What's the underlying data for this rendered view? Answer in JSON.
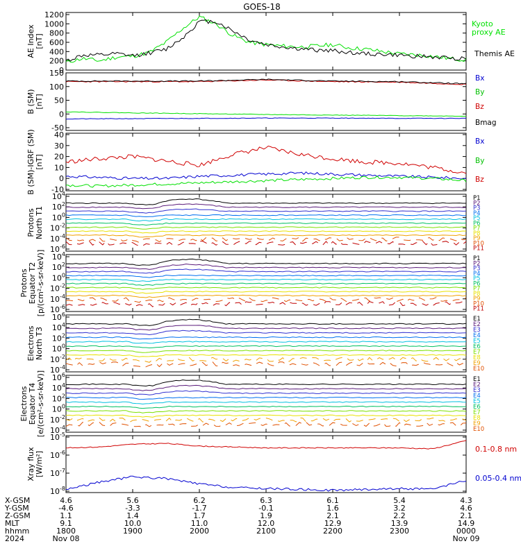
{
  "title": "GOES-18",
  "colors": {
    "black": "#000000",
    "green": "#00e000",
    "red": "#d00000",
    "blue": "#0000d0",
    "ladder": [
      "#000000",
      "#5a1a7a",
      "#3030d0",
      "#0070f0",
      "#00c0e0",
      "#00c060",
      "#7ce000",
      "#e8e000",
      "#f0a000",
      "#e05000",
      "#c00000"
    ]
  },
  "panels": [
    {
      "id": "ae",
      "ylabel": [
        "AE Index",
        "[nT]"
      ],
      "ticks": [
        "1200",
        "1000",
        "800",
        "600",
        "400",
        "200",
        "0"
      ],
      "legend": [
        {
          "text": "Kyoto",
          "color": "#00e000"
        },
        {
          "text": "proxy AE",
          "color": "#00e000"
        },
        {
          "text": "Themis AE",
          "color": "#000000"
        }
      ]
    },
    {
      "id": "bsm",
      "ylabel": [
        "B (SM)",
        "[nT]"
      ],
      "ticks": [
        "150",
        "100",
        "50",
        "0",
        "-50"
      ],
      "legend": [
        {
          "text": "Bx",
          "color": "#0000d0"
        },
        {
          "text": "By",
          "color": "#00c000"
        },
        {
          "text": "Bz",
          "color": "#d00000"
        },
        {
          "text": "Bmag",
          "color": "#000000"
        }
      ]
    },
    {
      "id": "bigrf",
      "ylabel": [
        "B (SM)-IGRF (SM)",
        "[nT]"
      ],
      "ticks": [
        "40",
        "30",
        "20",
        "10",
        "0",
        "-10"
      ],
      "legend": [
        {
          "text": "Bx",
          "color": "#0000d0"
        },
        {
          "text": "By",
          "color": "#00c000"
        },
        {
          "text": "Bz",
          "color": "#d00000"
        }
      ]
    },
    {
      "id": "pt1",
      "ylabel": [
        "Protons",
        "North T1"
      ],
      "ticks": [
        {
          "b": "10",
          "e": "4"
        },
        {
          "b": "10",
          "e": "2"
        },
        {
          "b": "10",
          "e": "0"
        },
        {
          "b": "10",
          "e": "-2"
        },
        {
          "b": "10",
          "e": "-4"
        },
        {
          "b": "10",
          "e": "-6"
        }
      ],
      "legend": [
        "P1",
        "P2",
        "P3",
        "P4",
        "P5",
        "P6",
        "P7",
        "P8",
        "P9",
        "P10",
        "P11"
      ]
    },
    {
      "id": "pt2",
      "ylabel": [
        "Protons",
        "Equator T2",
        "[p/(cm²-s-sr-keV)]"
      ],
      "ticks": [
        {
          "b": "10",
          "e": "4"
        },
        {
          "b": "10",
          "e": "2"
        },
        {
          "b": "10",
          "e": "0"
        },
        {
          "b": "10",
          "e": "-2"
        },
        {
          "b": "10",
          "e": "-4"
        },
        {
          "b": "10",
          "e": "-6"
        }
      ],
      "legend": [
        "P1",
        "P2",
        "P3",
        "P4",
        "P5",
        "P6",
        "P7",
        "P8",
        "P9",
        "P10",
        "P11"
      ]
    },
    {
      "id": "et3",
      "ylabel": [
        "Electrons",
        "North T3"
      ],
      "ticks": [
        {
          "b": "10",
          "e": "6"
        },
        {
          "b": "10",
          "e": "4"
        },
        {
          "b": "10",
          "e": "2"
        },
        {
          "b": "10",
          "e": "0"
        },
        {
          "b": "10",
          "e": "-2"
        },
        {
          "b": "10",
          "e": "-4"
        }
      ],
      "legend": [
        "E1",
        "E2",
        "E3",
        "E4",
        "E5",
        "E6",
        "E7",
        "E8",
        "E9",
        "E10"
      ]
    },
    {
      "id": "et4",
      "ylabel": [
        "Electrons",
        "Equator T4",
        "[e/(cm²-s-sr-keV)]"
      ],
      "ticks": [
        {
          "b": "10",
          "e": "6"
        },
        {
          "b": "10",
          "e": "4"
        },
        {
          "b": "10",
          "e": "2"
        },
        {
          "b": "10",
          "e": "0"
        },
        {
          "b": "10",
          "e": "-2"
        },
        {
          "b": "10",
          "e": "-4"
        }
      ],
      "legend": [
        "E1",
        "E2",
        "E3",
        "E4",
        "E5",
        "E6",
        "E7",
        "E8",
        "E9",
        "E10"
      ]
    },
    {
      "id": "xray",
      "ylabel": [
        "Xray flux",
        "[W/m²]"
      ],
      "ticks": [
        {
          "b": "10",
          "e": "-5"
        },
        {
          "b": "10",
          "e": "-6"
        },
        {
          "b": "10",
          "e": "-7"
        },
        {
          "b": "10",
          "e": "-8"
        }
      ],
      "legend": [
        {
          "text": "0.1-0.8 nm",
          "color": "#d00000"
        },
        {
          "text": "0.05-0.4 nm",
          "color": "#0000d0"
        }
      ]
    }
  ],
  "ephemeris": {
    "row_labels": [
      "X-GSM",
      "Y-GSM",
      "Z-GSM",
      "MLT",
      "hhmm",
      "2024"
    ],
    "columns": [
      [
        "4.6",
        "-4.6",
        "1.1",
        "9.1",
        "1800",
        "Nov 08"
      ],
      [
        "5.6",
        "-3.3",
        "1.4",
        "10.0",
        "1900",
        ""
      ],
      [
        "6.2",
        "-1.7",
        "1.7",
        "11.0",
        "2000",
        ""
      ],
      [
        "6.3",
        "-0.1",
        "1.9",
        "12.0",
        "2100",
        ""
      ],
      [
        "6.1",
        "1.6",
        "2.1",
        "12.9",
        "2200",
        ""
      ],
      [
        "5.4",
        "3.2",
        "2.2",
        "13.9",
        "2300",
        ""
      ],
      [
        "4.3",
        "4.6",
        "2.1",
        "14.9",
        "0000",
        "Nov 09"
      ]
    ]
  },
  "chart_data": [
    {
      "type": "line",
      "panel": "AE Index",
      "ylim": [
        0,
        1200
      ],
      "x_hours": [
        0,
        0.25,
        0.5,
        0.75,
        1.0,
        1.25,
        1.5,
        1.75,
        2.0,
        2.25,
        2.5,
        2.75,
        3.0,
        3.25,
        3.5,
        3.75,
        4.0,
        4.25,
        4.5,
        4.75,
        5.0,
        5.25,
        5.5,
        5.75,
        6.0
      ],
      "series": [
        {
          "name": "Kyoto proxy AE",
          "values": [
            170,
            250,
            200,
            280,
            300,
            380,
            600,
            900,
            1150,
            1000,
            750,
            600,
            550,
            520,
            500,
            520,
            550,
            480,
            450,
            400,
            350,
            330,
            300,
            250,
            220
          ]
        },
        {
          "name": "Themis AE",
          "values": [
            200,
            320,
            320,
            350,
            310,
            370,
            450,
            700,
            1050,
            1050,
            850,
            650,
            550,
            500,
            460,
            430,
            420,
            380,
            350,
            340,
            320,
            300,
            280,
            260,
            250
          ]
        }
      ]
    },
    {
      "type": "line",
      "panel": "B (SM)",
      "ylim": [
        -60,
        150
      ],
      "x_hours": [
        0,
        1,
        2,
        3,
        4,
        5,
        6
      ],
      "series": [
        {
          "name": "Bx",
          "values": [
            -18,
            -17,
            -16,
            -15,
            -15,
            -16,
            -16
          ]
        },
        {
          "name": "By",
          "values": [
            8,
            4,
            1,
            -2,
            -4,
            -6,
            -8
          ]
        },
        {
          "name": "Bz",
          "values": [
            118,
            118,
            118,
            124,
            118,
            116,
            108
          ]
        },
        {
          "name": "Bmag",
          "values": [
            120,
            120,
            120,
            126,
            120,
            118,
            110
          ]
        }
      ]
    },
    {
      "type": "line",
      "panel": "B (SM)-IGRF (SM)",
      "ylim": [
        -10,
        40
      ],
      "x_hours": [
        0,
        0.5,
        1,
        1.5,
        2,
        2.5,
        3,
        3.5,
        4,
        4.5,
        5,
        5.5,
        6
      ],
      "series": [
        {
          "name": "Bx",
          "values": [
            2,
            1,
            0,
            0,
            2,
            3,
            4,
            5,
            4,
            3,
            2,
            1,
            0
          ]
        },
        {
          "name": "By",
          "values": [
            -6,
            -7,
            -6,
            -5,
            -4,
            -3,
            -2,
            -1,
            0,
            1,
            1,
            0,
            -2
          ]
        },
        {
          "name": "Bz",
          "values": [
            15,
            18,
            20,
            16,
            12,
            22,
            28,
            22,
            18,
            15,
            14,
            10,
            5
          ]
        }
      ]
    },
    {
      "type": "line",
      "panel": "Protons North T1",
      "scale": "log",
      "ylim_exp": [
        -6,
        4
      ],
      "series": [
        "P1",
        "P2",
        "P3",
        "P4",
        "P5",
        "P6",
        "P7",
        "P8",
        "P9",
        "P10",
        "P11"
      ]
    },
    {
      "type": "line",
      "panel": "Protons Equator T2",
      "scale": "log",
      "ylim_exp": [
        -6,
        4
      ],
      "series": [
        "P1",
        "P2",
        "P3",
        "P4",
        "P5",
        "P6",
        "P7",
        "P8",
        "P9",
        "P10",
        "P11"
      ]
    },
    {
      "type": "line",
      "panel": "Electrons North T3",
      "scale": "log",
      "ylim_exp": [
        -4,
        6
      ],
      "series": [
        "E1",
        "E2",
        "E3",
        "E4",
        "E5",
        "E6",
        "E7",
        "E8",
        "E9",
        "E10"
      ]
    },
    {
      "type": "line",
      "panel": "Electrons Equator T4",
      "scale": "log",
      "ylim_exp": [
        -4,
        6
      ],
      "series": [
        "E1",
        "E2",
        "E3",
        "E4",
        "E5",
        "E6",
        "E7",
        "E8",
        "E9",
        "E10"
      ]
    },
    {
      "type": "line",
      "panel": "Xray flux",
      "scale": "log",
      "ylim_exp": [
        -8,
        -5
      ],
      "x_hours": [
        0,
        0.5,
        1,
        1.5,
        2,
        2.5,
        3,
        3.5,
        4,
        4.5,
        5,
        5.5,
        6
      ],
      "series": [
        {
          "name": "0.1-0.8 nm",
          "values_exp": [
            -5.6,
            -5.55,
            -5.4,
            -5.35,
            -5.5,
            -5.55,
            -5.6,
            -5.6,
            -5.6,
            -5.6,
            -5.6,
            -5.65,
            -5.2
          ]
        },
        {
          "name": "0.05-0.4 nm",
          "values_exp": [
            -7.9,
            -7.5,
            -7.2,
            -7.3,
            -7.6,
            -7.8,
            -7.85,
            -7.9,
            -7.95,
            -7.9,
            -7.85,
            -7.9,
            -7.4
          ]
        }
      ]
    }
  ]
}
